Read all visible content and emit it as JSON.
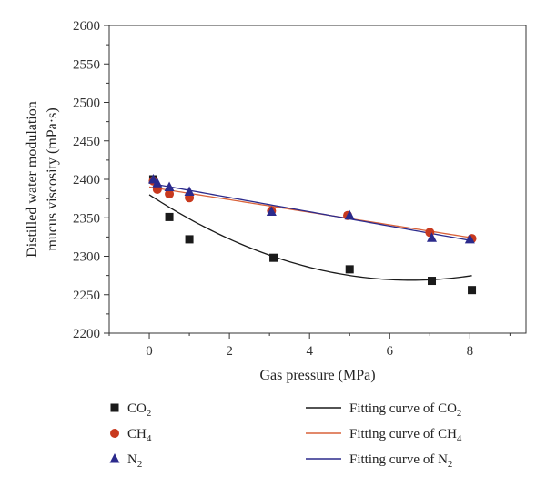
{
  "chart_data": {
    "type": "scatter",
    "title": "",
    "xlabel": "Gas pressure (MPa)",
    "ylabel_line1": "Distilled water modulation",
    "ylabel_line2": "mucus viscosity (mPa·s)",
    "xlim": [
      -1,
      9.4
    ],
    "ylim": [
      2200,
      2600
    ],
    "xticks": [
      0,
      2,
      4,
      6,
      8
    ],
    "xtick_labels": [
      "0",
      "2",
      "4",
      "6",
      "8"
    ],
    "yticks": [
      2200,
      2250,
      2300,
      2350,
      2400,
      2450,
      2500,
      2550,
      2600
    ],
    "ytick_labels": [
      "2200",
      "2250",
      "2300",
      "2350",
      "2400",
      "2450",
      "2500",
      "2550",
      "2600"
    ],
    "grid": false,
    "legend_position": "bottom",
    "series": [
      {
        "key": "co2",
        "label_main": "CO",
        "label_sub": "2",
        "marker": "square",
        "color": "#1a1a1a",
        "x": [
          0.1,
          0.5,
          1.0,
          3.1,
          5.0,
          7.05,
          8.05
        ],
        "y": [
          2400,
          2351,
          2322,
          2298,
          2283,
          2268,
          2256
        ]
      },
      {
        "key": "ch4",
        "label_main": "CH",
        "label_sub": "4",
        "marker": "circle",
        "color": "#c8391e",
        "x": [
          0.1,
          0.2,
          0.5,
          1.0,
          3.05,
          4.95,
          7.0,
          8.05
        ],
        "y": [
          2398,
          2387,
          2381,
          2376,
          2359,
          2353,
          2331,
          2323
        ]
      },
      {
        "key": "n2",
        "label_main": "N",
        "label_sub": "2",
        "marker": "triangle",
        "color": "#2b2a8c",
        "x": [
          0.1,
          0.2,
          0.5,
          1.0,
          3.05,
          5.0,
          7.05,
          8.0
        ],
        "y": [
          2400,
          2395,
          2390,
          2384,
          2358,
          2353,
          2324,
          2322
        ]
      }
    ],
    "fits": [
      {
        "key": "co2",
        "label_main": "Fitting curve of CO",
        "label_sub": "2",
        "color": "#1a1a1a",
        "x_range": [
          0,
          8.05
        ],
        "coeffs": [
          2380,
          -34,
          2.6
        ]
      },
      {
        "key": "ch4",
        "label_main": "Fitting curve of CH",
        "label_sub": "4",
        "color": "#d9623a",
        "x_range": [
          0,
          8.05
        ],
        "coeffs": [
          2390,
          -8.2,
          0
        ]
      },
      {
        "key": "n2",
        "label_main": "Fitting curve of N",
        "label_sub": "2",
        "color": "#2b2a8c",
        "x_range": [
          0,
          8.0
        ],
        "coeffs": [
          2395,
          -9.3,
          0
        ]
      }
    ]
  }
}
